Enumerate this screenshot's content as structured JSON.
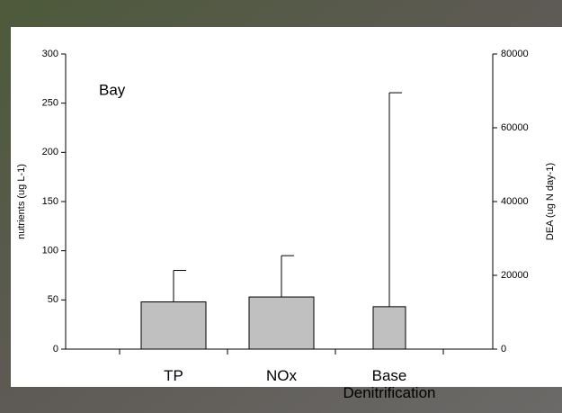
{
  "chart_data": {
    "type": "bar",
    "categories": [
      "TP",
      "NOx",
      "Base Denitrification"
    ],
    "series": [
      {
        "color": "#c0c0c0",
        "values": [
          48,
          53,
          null
        ],
        "errors": [
          32,
          42,
          null
        ]
      },
      {
        "color": "#c0c0c0",
        "values": [
          null,
          null,
          11500
        ],
        "errors": [
          null,
          null,
          58000
        ],
        "axis": "y2"
      }
    ],
    "ylim": [
      0,
      300
    ],
    "yticks": [
      0,
      50,
      100,
      150,
      200,
      250,
      300
    ],
    "y2lim": [
      0,
      80000
    ],
    "y2ticks": [
      0,
      20000,
      40000,
      60000,
      80000
    ],
    "ylabel": "nutrients (ug L-1)",
    "y2label": "DEA (ug N day-1)",
    "annotation": "Bay"
  }
}
